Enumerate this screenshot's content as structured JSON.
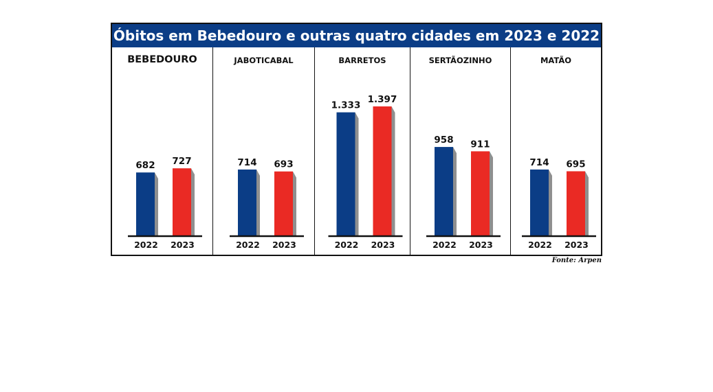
{
  "colors": {
    "title_bg": "#0b3d86",
    "title_text": "#ffffff",
    "year_2022": "#0b3d86",
    "year_2023": "#ea2a24",
    "shadow": "#8f8f8f"
  },
  "chart_data": {
    "type": "bar",
    "title": "Óbitos em Bebedouro e outras quatro cidades em 2023 e 2022",
    "source": "Fonte: Arpen",
    "years": [
      "2022",
      "2023"
    ],
    "ylim": [
      0,
      1397
    ],
    "panels": [
      {
        "city": "BEBEDOURO",
        "values": [
          682,
          727
        ],
        "labels": [
          "682",
          "727"
        ]
      },
      {
        "city": "JABOTICABAL",
        "values": [
          714,
          693
        ],
        "labels": [
          "714",
          "693"
        ]
      },
      {
        "city": "BARRETOS",
        "values": [
          1333,
          1397
        ],
        "labels": [
          "1.333",
          "1.397"
        ]
      },
      {
        "city": "SERTÃOZINHO",
        "values": [
          958,
          911
        ],
        "labels": [
          "958",
          "911"
        ]
      },
      {
        "city": "MATÃO",
        "values": [
          714,
          695
        ],
        "labels": [
          "714",
          "695"
        ]
      }
    ]
  }
}
